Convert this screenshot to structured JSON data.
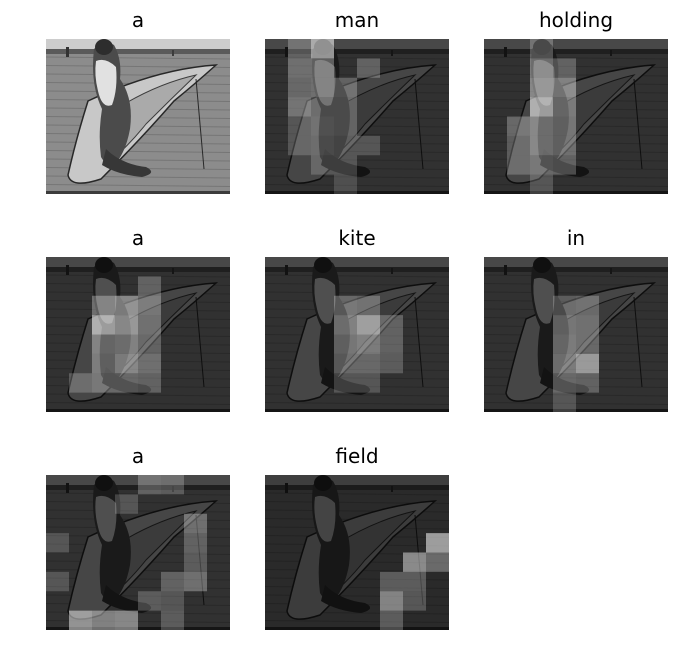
{
  "panels": [
    {
      "word": "a",
      "base_brightness": 1.0,
      "attention": []
    },
    {
      "word": "man",
      "base_brightness": 0.35,
      "attention": [
        [
          0,
          2,
          0.9
        ],
        [
          0,
          1,
          0.4
        ],
        [
          1,
          1,
          0.5
        ],
        [
          1,
          2,
          0.5
        ],
        [
          1,
          4,
          0.4
        ],
        [
          2,
          1,
          0.45
        ],
        [
          2,
          2,
          0.5
        ],
        [
          2,
          3,
          0.4
        ],
        [
          3,
          1,
          0.55
        ],
        [
          3,
          2,
          0.35
        ],
        [
          3,
          3,
          0.35
        ],
        [
          4,
          1,
          0.3
        ],
        [
          4,
          2,
          0.4
        ],
        [
          4,
          3,
          0.35
        ],
        [
          5,
          1,
          0.3
        ],
        [
          5,
          2,
          0.35
        ],
        [
          5,
          3,
          0.3
        ],
        [
          5,
          4,
          0.3
        ],
        [
          6,
          2,
          0.3
        ],
        [
          6,
          3,
          0.3
        ],
        [
          7,
          3,
          0.25
        ]
      ]
    },
    {
      "word": "holding",
      "base_brightness": 0.35,
      "attention": [
        [
          0,
          2,
          0.4
        ],
        [
          1,
          2,
          0.6
        ],
        [
          1,
          3,
          0.4
        ],
        [
          2,
          2,
          0.7
        ],
        [
          2,
          3,
          0.65
        ],
        [
          3,
          2,
          0.95
        ],
        [
          3,
          3,
          0.55
        ],
        [
          4,
          1,
          0.45
        ],
        [
          4,
          2,
          0.6
        ],
        [
          4,
          3,
          0.5
        ],
        [
          5,
          1,
          0.35
        ],
        [
          5,
          2,
          0.6
        ],
        [
          5,
          3,
          0.5
        ],
        [
          6,
          1,
          0.35
        ],
        [
          6,
          2,
          0.45
        ],
        [
          6,
          3,
          0.4
        ],
        [
          7,
          2,
          0.3
        ]
      ]
    },
    {
      "word": "a",
      "base_brightness": 0.35,
      "attention": [
        [
          1,
          4,
          0.4
        ],
        [
          2,
          2,
          0.5
        ],
        [
          2,
          3,
          0.7
        ],
        [
          2,
          4,
          0.5
        ],
        [
          3,
          2,
          0.95
        ],
        [
          3,
          3,
          0.8
        ],
        [
          3,
          4,
          0.45
        ],
        [
          4,
          2,
          0.55
        ],
        [
          4,
          3,
          0.6
        ],
        [
          4,
          4,
          0.4
        ],
        [
          5,
          2,
          0.5
        ],
        [
          5,
          3,
          0.7
        ],
        [
          5,
          4,
          0.5
        ],
        [
          6,
          1,
          0.35
        ],
        [
          6,
          2,
          0.45
        ],
        [
          6,
          3,
          0.45
        ],
        [
          6,
          4,
          0.4
        ]
      ]
    },
    {
      "word": "kite",
      "base_brightness": 0.35,
      "attention": [
        [
          2,
          3,
          0.45
        ],
        [
          2,
          4,
          0.4
        ],
        [
          3,
          3,
          0.6
        ],
        [
          3,
          4,
          0.85
        ],
        [
          3,
          5,
          0.4
        ],
        [
          4,
          3,
          0.5
        ],
        [
          4,
          4,
          0.6
        ],
        [
          4,
          5,
          0.4
        ],
        [
          5,
          3,
          0.45
        ],
        [
          5,
          4,
          0.45
        ],
        [
          5,
          5,
          0.35
        ],
        [
          6,
          3,
          0.3
        ],
        [
          6,
          4,
          0.3
        ]
      ]
    },
    {
      "word": "in",
      "base_brightness": 0.35,
      "attention": [
        [
          2,
          3,
          0.35
        ],
        [
          2,
          4,
          0.4
        ],
        [
          3,
          3,
          0.5
        ],
        [
          3,
          4,
          0.45
        ],
        [
          4,
          3,
          0.55
        ],
        [
          4,
          4,
          0.45
        ],
        [
          5,
          3,
          0.6
        ],
        [
          5,
          4,
          0.85
        ],
        [
          6,
          3,
          0.45
        ],
        [
          6,
          4,
          0.4
        ],
        [
          7,
          3,
          0.3
        ]
      ]
    },
    {
      "word": "a",
      "base_brightness": 0.35,
      "attention": [
        [
          0,
          4,
          0.4
        ],
        [
          0,
          5,
          0.35
        ],
        [
          1,
          3,
          0.3
        ],
        [
          2,
          6,
          0.5
        ],
        [
          3,
          0,
          0.3
        ],
        [
          3,
          6,
          0.4
        ],
        [
          4,
          6,
          0.35
        ],
        [
          5,
          0,
          0.3
        ],
        [
          5,
          5,
          0.4
        ],
        [
          5,
          6,
          0.5
        ],
        [
          6,
          4,
          0.35
        ],
        [
          6,
          5,
          0.3
        ],
        [
          7,
          1,
          0.8
        ],
        [
          7,
          2,
          0.65
        ],
        [
          7,
          3,
          0.7
        ],
        [
          7,
          5,
          0.35
        ]
      ]
    },
    {
      "word": "field",
      "base_brightness": 0.3,
      "attention": [
        [
          3,
          7,
          0.9
        ],
        [
          4,
          6,
          0.75
        ],
        [
          4,
          7,
          0.5
        ],
        [
          5,
          5,
          0.4
        ],
        [
          5,
          6,
          0.4
        ],
        [
          6,
          5,
          0.7
        ],
        [
          6,
          6,
          0.35
        ],
        [
          7,
          5,
          0.4
        ]
      ]
    }
  ]
}
